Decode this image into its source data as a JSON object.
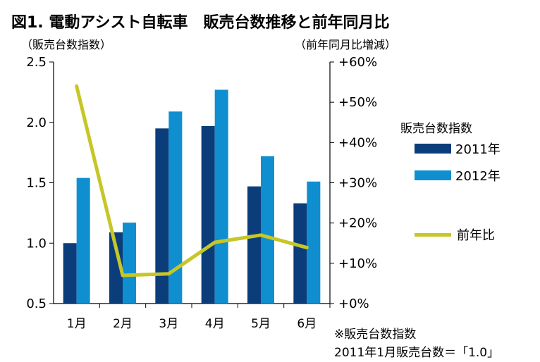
{
  "title": "図1. 電動アシスト自転車　販売台数推移と前年同月比",
  "left_axis_title": "（販売台数指数）",
  "right_axis_title": "（前年同月比増減）",
  "legend": {
    "title": "販売台数指数",
    "items": [
      "2011年",
      "2012年",
      "前年比"
    ]
  },
  "footnote": {
    "line1": "※販売台数指数",
    "line2": "2011年1月販売台数＝「1.0」"
  },
  "colors": {
    "series_2011": "#0b3d7a",
    "series_2012": "#0f8fd0",
    "yoy_line": "#c6c628",
    "axis": "#000000"
  },
  "chart_data": {
    "type": "bar",
    "categories": [
      "1月",
      "2月",
      "3月",
      "4月",
      "5月",
      "6月"
    ],
    "series": [
      {
        "name": "2011年",
        "axis": "left",
        "values": [
          1.0,
          1.09,
          1.95,
          1.97,
          1.47,
          1.33
        ]
      },
      {
        "name": "2012年",
        "axis": "left",
        "values": [
          1.54,
          1.17,
          2.09,
          2.27,
          1.72,
          1.51
        ]
      },
      {
        "name": "前年比",
        "axis": "right",
        "type": "line",
        "values": [
          54,
          7,
          7.4,
          15.2,
          17,
          13.9
        ]
      }
    ],
    "y_left": {
      "min": 0.5,
      "max": 2.5,
      "ticks": [
        "0.5",
        "1.0",
        "1.5",
        "2.0",
        "2.5"
      ]
    },
    "y_right": {
      "min": 0,
      "max": 60,
      "ticks": [
        "+0%",
        "+10%",
        "+20%",
        "+30%",
        "+40%",
        "+50%",
        "+60%"
      ]
    },
    "grid": false,
    "legend_position": "right"
  }
}
